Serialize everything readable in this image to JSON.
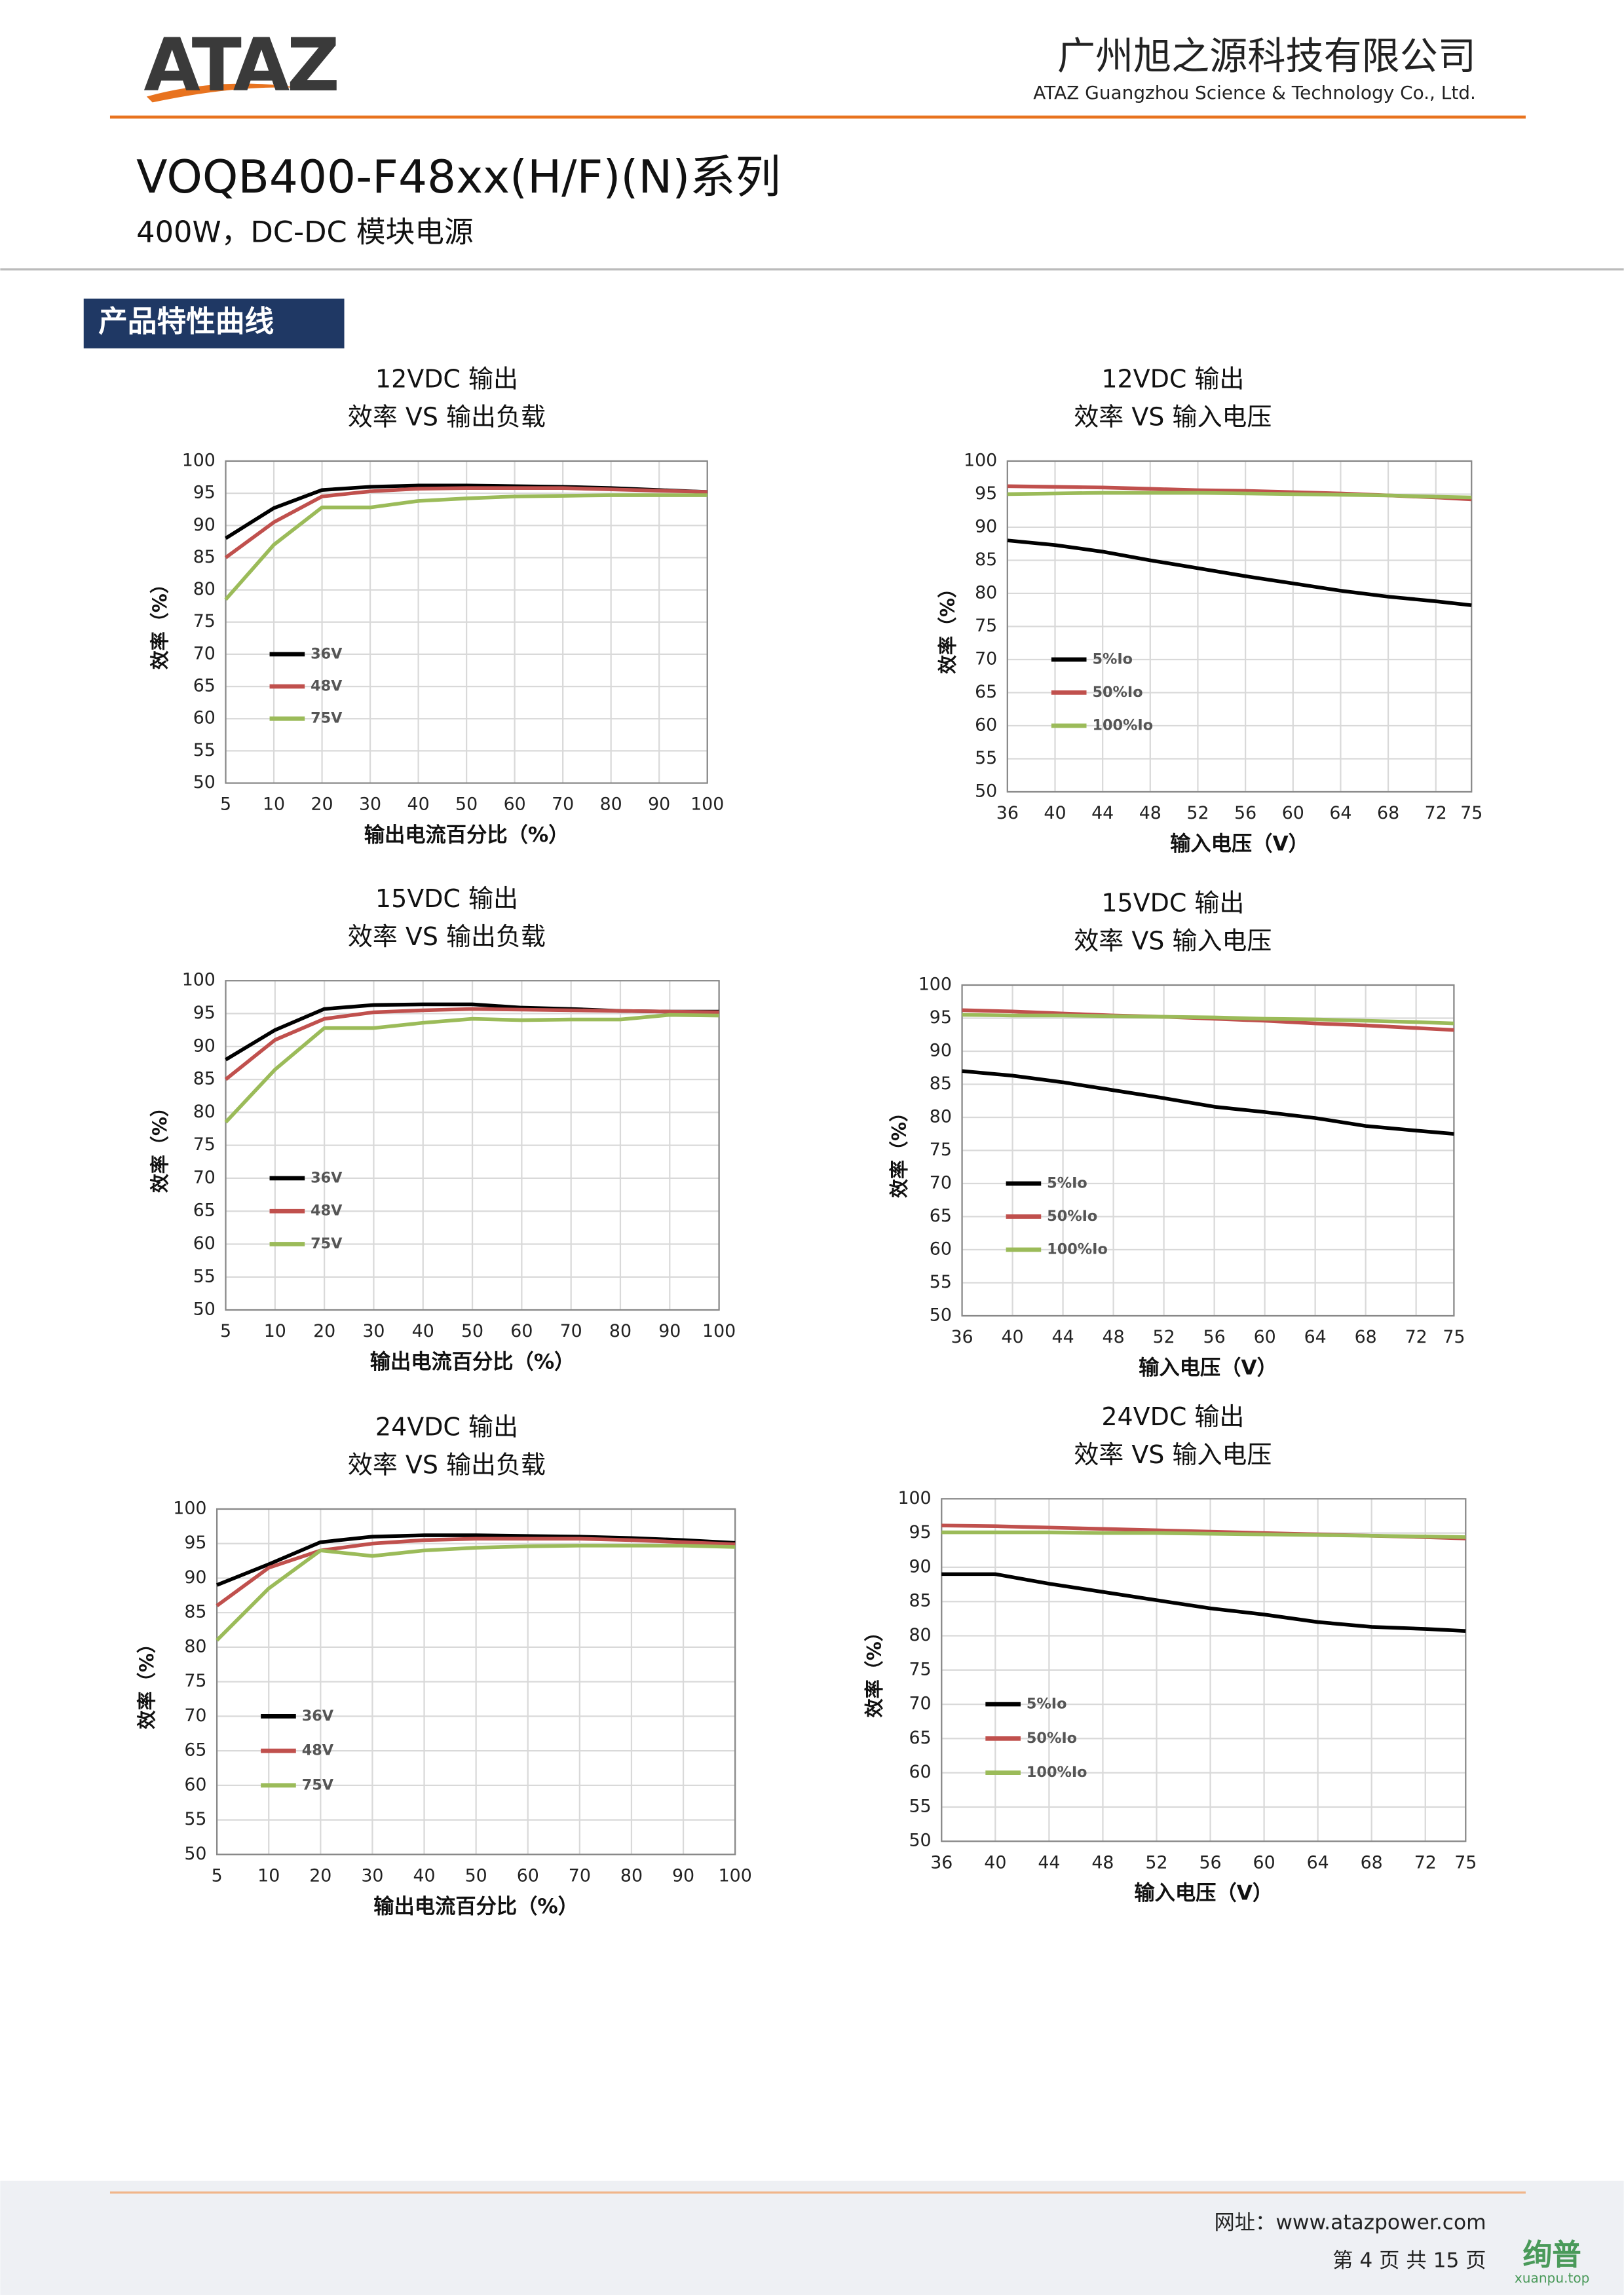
{
  "header": {
    "logo": "ATAZ",
    "company": "广州旭之源科技有限公司",
    "company_en": "ATAZ Guangzhou Science & Technology Co., Ltd."
  },
  "title": "VOQB400-F48xx(H/F)(N)系列",
  "subtitle": "400W，DC-DC 模块电源",
  "section": "产品特性曲线",
  "chart_data": [
    {
      "type": "line",
      "title": "12VDC 输出",
      "subtitle": "效率 VS 输出负载",
      "x_label": "输出电流百分比（%）",
      "y_label": "效率（%）",
      "categories": [
        "5",
        "10",
        "20",
        "30",
        "40",
        "50",
        "60",
        "70",
        "80",
        "90",
        "100"
      ],
      "ylim": [
        50,
        100
      ],
      "yticks": [
        50,
        55,
        60,
        65,
        70,
        75,
        80,
        85,
        90,
        95,
        100
      ],
      "grid": true,
      "legend": "left",
      "series": [
        {
          "name": "36V",
          "color": "#000000",
          "values": [
            88,
            92.7,
            95.5,
            96,
            96.2,
            96.2,
            96.1,
            96,
            95.8,
            95.5,
            95.2
          ]
        },
        {
          "name": "48V",
          "color": "#c0504d",
          "values": [
            85,
            90.5,
            94.5,
            95.3,
            95.7,
            95.8,
            95.8,
            95.8,
            95.6,
            95.4,
            95.2
          ]
        },
        {
          "name": "75V",
          "color": "#9bbb59",
          "values": [
            78.5,
            87,
            92.8,
            92.8,
            93.8,
            94.2,
            94.5,
            94.6,
            94.7,
            94.7,
            94.7
          ]
        }
      ]
    },
    {
      "type": "line",
      "title": "12VDC 输出",
      "subtitle": "效率 VS 输入电压",
      "x_label": "输入电压（V）",
      "y_label": "效率（%）",
      "x": [
        36,
        40,
        44,
        48,
        52,
        56,
        60,
        64,
        68,
        72,
        75
      ],
      "xlim": [
        36,
        75
      ],
      "xticks": [
        36,
        40,
        44,
        48,
        52,
        56,
        60,
        64,
        68,
        72,
        75
      ],
      "ylim": [
        50,
        100
      ],
      "yticks": [
        50,
        55,
        60,
        65,
        70,
        75,
        80,
        85,
        90,
        95,
        100
      ],
      "grid": true,
      "legend": "left",
      "series": [
        {
          "name": "5%Io",
          "color": "#000000",
          "values": [
            88,
            87.3,
            86.3,
            85,
            83.8,
            82.6,
            81.5,
            80.4,
            79.5,
            78.8,
            78.2
          ]
        },
        {
          "name": "50%Io",
          "color": "#c0504d",
          "values": [
            96.2,
            96.1,
            96,
            95.8,
            95.6,
            95.5,
            95.3,
            95.1,
            94.8,
            94.5,
            94.2
          ]
        },
        {
          "name": "100%Io",
          "color": "#9bbb59",
          "values": [
            95,
            95.1,
            95.2,
            95.2,
            95.2,
            95.1,
            95,
            94.9,
            94.8,
            94.6,
            94.5
          ]
        }
      ]
    },
    {
      "type": "line",
      "title": "15VDC 输出",
      "subtitle": "效率 VS 输出负载",
      "x_label": "输出电流百分比（%）",
      "y_label": "效率（%）",
      "categories": [
        "5",
        "10",
        "20",
        "30",
        "40",
        "50",
        "60",
        "70",
        "80",
        "90",
        "100"
      ],
      "ylim": [
        50,
        100
      ],
      "yticks": [
        50,
        55,
        60,
        65,
        70,
        75,
        80,
        85,
        90,
        95,
        100
      ],
      "grid": true,
      "legend": "left",
      "series": [
        {
          "name": "36V",
          "color": "#000000",
          "values": [
            88,
            92.5,
            95.7,
            96.3,
            96.4,
            96.4,
            95.9,
            95.7,
            95.4,
            95.3,
            95.3
          ]
        },
        {
          "name": "48V",
          "color": "#c0504d",
          "values": [
            85,
            91,
            94.2,
            95.2,
            95.5,
            95.7,
            95.6,
            95.5,
            95.4,
            95.3,
            95.2
          ]
        },
        {
          "name": "75V",
          "color": "#9bbb59",
          "values": [
            78.5,
            86.5,
            92.8,
            92.8,
            93.6,
            94.2,
            94,
            94.1,
            94.1,
            94.8,
            94.7
          ]
        }
      ]
    },
    {
      "type": "line",
      "title": "15VDC 输出",
      "subtitle": "效率 VS 输入电压",
      "x_label": "输入电压（V）",
      "y_label": "效率（%）",
      "x": [
        36,
        40,
        44,
        48,
        52,
        56,
        60,
        64,
        68,
        72,
        75
      ],
      "xlim": [
        36,
        75
      ],
      "xticks": [
        36,
        40,
        44,
        48,
        52,
        56,
        60,
        64,
        68,
        72,
        75
      ],
      "ylim": [
        50,
        100
      ],
      "yticks": [
        50,
        55,
        60,
        65,
        70,
        75,
        80,
        85,
        90,
        95,
        100
      ],
      "grid": true,
      "legend": "left",
      "series": [
        {
          "name": "5%Io",
          "color": "#000000",
          "values": [
            87,
            86.3,
            85.3,
            84.1,
            82.9,
            81.6,
            80.8,
            79.9,
            78.7,
            78,
            77.5
          ]
        },
        {
          "name": "50%Io",
          "color": "#c0504d",
          "values": [
            96.2,
            96,
            95.7,
            95.4,
            95.2,
            94.9,
            94.6,
            94.2,
            93.9,
            93.5,
            93.2
          ]
        },
        {
          "name": "100%Io",
          "color": "#9bbb59",
          "values": [
            95.5,
            95.4,
            95.4,
            95.3,
            95.2,
            95.1,
            94.9,
            94.8,
            94.6,
            94.4,
            94.2
          ]
        }
      ]
    },
    {
      "type": "line",
      "title": "24VDC 输出",
      "subtitle": "效率 VS 输出负载",
      "x_label": "输出电流百分比（%）",
      "y_label": "效率（%）",
      "categories": [
        "5",
        "10",
        "20",
        "30",
        "40",
        "50",
        "60",
        "70",
        "80",
        "90",
        "100"
      ],
      "ylim": [
        50,
        100
      ],
      "yticks": [
        50,
        55,
        60,
        65,
        70,
        75,
        80,
        85,
        90,
        95,
        100
      ],
      "grid": true,
      "legend": "left",
      "series": [
        {
          "name": "36V",
          "color": "#000000",
          "values": [
            89,
            92,
            95.2,
            96,
            96.2,
            96.2,
            96.1,
            96,
            95.8,
            95.5,
            95.1
          ]
        },
        {
          "name": "48V",
          "color": "#c0504d",
          "values": [
            86,
            91.5,
            94,
            95,
            95.5,
            95.7,
            95.7,
            95.7,
            95.5,
            95.2,
            94.9
          ]
        },
        {
          "name": "75V",
          "color": "#9bbb59",
          "values": [
            81,
            88.5,
            94,
            93.2,
            94,
            94.4,
            94.6,
            94.7,
            94.7,
            94.7,
            94.5
          ]
        }
      ]
    },
    {
      "type": "line",
      "title": "24VDC 输出",
      "subtitle": "效率 VS 输入电压",
      "x_label": "输入电压（V）",
      "y_label": "效率（%）",
      "x": [
        36,
        40,
        44,
        48,
        52,
        56,
        60,
        64,
        68,
        72,
        75
      ],
      "xlim": [
        36,
        75
      ],
      "xticks": [
        36,
        40,
        44,
        48,
        52,
        56,
        60,
        64,
        68,
        72,
        75
      ],
      "ylim": [
        50,
        100
      ],
      "yticks": [
        50,
        55,
        60,
        65,
        70,
        75,
        80,
        85,
        90,
        95,
        100
      ],
      "grid": true,
      "legend": "left",
      "series": [
        {
          "name": "5%Io",
          "color": "#000000",
          "values": [
            89,
            89,
            87.6,
            86.4,
            85.2,
            84,
            83.1,
            82,
            81.3,
            81,
            80.7
          ]
        },
        {
          "name": "50%Io",
          "color": "#c0504d",
          "values": [
            96.1,
            96,
            95.8,
            95.6,
            95.4,
            95.2,
            95,
            94.8,
            94.6,
            94.4,
            94.2
          ]
        },
        {
          "name": "100%Io",
          "color": "#9bbb59",
          "values": [
            95.1,
            95.1,
            95.1,
            95,
            95,
            94.9,
            94.8,
            94.7,
            94.6,
            94.5,
            94.4
          ]
        }
      ]
    }
  ],
  "footer": {
    "website": "网址：www.atazpower.com",
    "page": "第 4 页 共 15 页"
  },
  "watermark": {
    "brand": "绚普",
    "site": "xuanpu.top"
  }
}
